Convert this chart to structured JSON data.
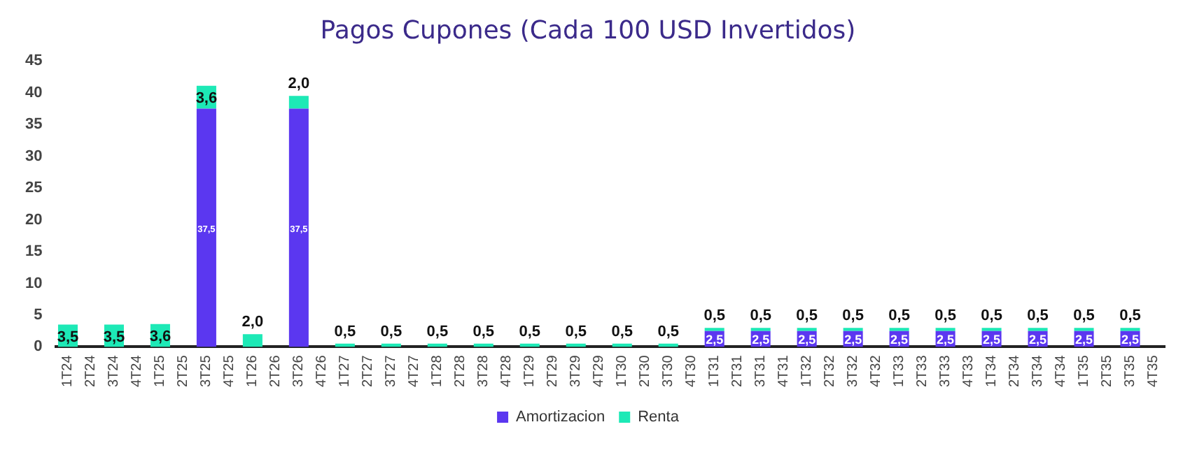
{
  "chart_data": {
    "type": "bar",
    "title": "Pagos Cupones (Cada 100 USD Invertidos)",
    "stacked": true,
    "legend": "bottom",
    "grid": false,
    "categories": [
      "1T24",
      "2T24",
      "3T24",
      "4T24",
      "1T25",
      "2T25",
      "3T25",
      "4T25",
      "1T26",
      "2T26",
      "3T26",
      "4T26",
      "1T27",
      "2T27",
      "3T27",
      "4T27",
      "1T28",
      "2T28",
      "3T28",
      "4T28",
      "1T29",
      "2T29",
      "3T29",
      "4T29",
      "1T30",
      "2T30",
      "3T30",
      "4T30",
      "1T31",
      "2T31",
      "3T31",
      "4T31",
      "1T32",
      "2T32",
      "3T32",
      "4T32",
      "1T33",
      "2T33",
      "3T33",
      "4T33",
      "1T34",
      "2T34",
      "3T34",
      "4T34",
      "1T35",
      "2T35",
      "3T35",
      "4T35"
    ],
    "ylim": [
      0,
      45
    ],
    "yticks": [
      0,
      5,
      10,
      15,
      20,
      25,
      30,
      35,
      40,
      45
    ],
    "series": [
      {
        "name": "Amortizacion",
        "color": "#5b37f0",
        "values": [
          null,
          null,
          null,
          null,
          null,
          null,
          37.5,
          null,
          null,
          null,
          37.5,
          null,
          null,
          null,
          null,
          null,
          null,
          null,
          null,
          null,
          null,
          null,
          null,
          null,
          null,
          null,
          null,
          null,
          2.5,
          null,
          2.5,
          null,
          2.5,
          null,
          2.5,
          null,
          2.5,
          null,
          2.5,
          null,
          2.5,
          null,
          2.5,
          null,
          2.5,
          null,
          2.5,
          null
        ],
        "value_labels": [
          null,
          null,
          null,
          null,
          null,
          null,
          "37,5",
          null,
          null,
          null,
          "37,5",
          null,
          null,
          null,
          null,
          null,
          null,
          null,
          null,
          null,
          null,
          null,
          null,
          null,
          null,
          null,
          null,
          null,
          "2,5",
          null,
          "2,5",
          null,
          "2,5",
          null,
          "2,5",
          null,
          "2,5",
          null,
          "2,5",
          null,
          "2,5",
          null,
          "2,5",
          null,
          "2,5",
          null,
          "2,5",
          null
        ]
      },
      {
        "name": "Renta",
        "color": "#1de9b6",
        "values": [
          3.5,
          null,
          3.5,
          null,
          3.6,
          null,
          3.6,
          null,
          2.0,
          null,
          2.0,
          null,
          0.5,
          null,
          0.5,
          null,
          0.5,
          null,
          0.5,
          null,
          0.5,
          null,
          0.5,
          null,
          0.5,
          null,
          0.5,
          null,
          0.5,
          null,
          0.5,
          null,
          0.5,
          null,
          0.5,
          null,
          0.5,
          null,
          0.5,
          null,
          0.5,
          null,
          0.5,
          null,
          0.5,
          null,
          0.5,
          null
        ],
        "value_labels": [
          "3,5",
          null,
          "3,5",
          null,
          "3,6",
          null,
          "3,6",
          null,
          "2,0",
          null,
          "2,0",
          null,
          "0,5",
          null,
          "0,5",
          null,
          "0,5",
          null,
          "0,5",
          null,
          "0,5",
          null,
          "0,5",
          null,
          "0,5",
          null,
          "0,5",
          null,
          "0,5",
          null,
          "0,5",
          null,
          "0,5",
          null,
          "0,5",
          null,
          "0,5",
          null,
          "0,5",
          null,
          "0,5",
          null,
          "0,5",
          null,
          "0,5",
          null,
          "0,5",
          null
        ]
      }
    ]
  }
}
